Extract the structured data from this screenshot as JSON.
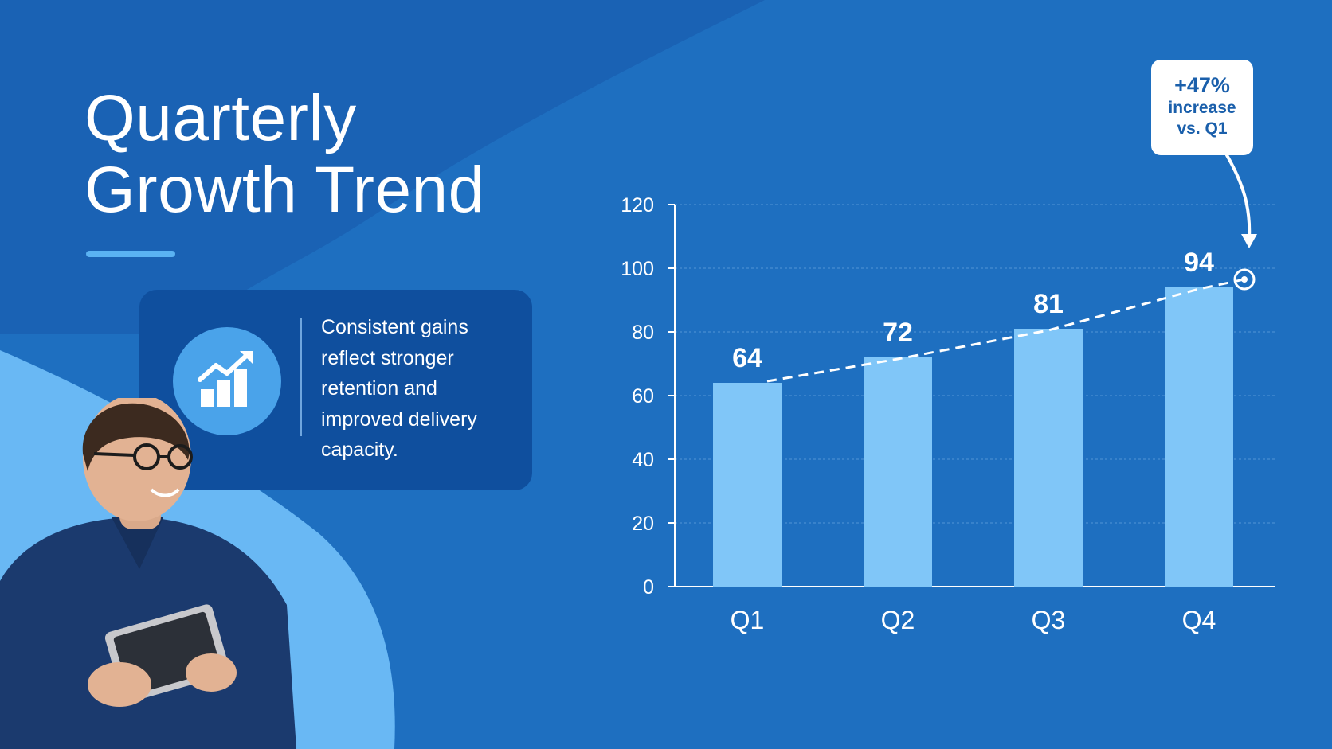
{
  "title": {
    "line1": "Quarterly",
    "line2": "Growth Trend"
  },
  "card": {
    "text": "Consistent gains reflect stronger retention and improved delivery capacity."
  },
  "callout": {
    "value": "+47%",
    "text_line1": "increase",
    "text_line2": "vs. Q1"
  },
  "colors": {
    "background": "#1e6fc0",
    "bar": "#80c6f8",
    "card": "#0f4f9e",
    "accent": "#5ab2f2",
    "callout_text": "#1a5fab"
  },
  "chart_data": {
    "type": "bar",
    "categories": [
      "Q1",
      "Q2",
      "Q3",
      "Q4"
    ],
    "values": [
      64,
      72,
      81,
      94
    ],
    "data_labels": [
      "64",
      "72",
      "81",
      "94"
    ],
    "ylim": [
      0,
      120
    ],
    "yticks": [
      0,
      20,
      40,
      60,
      80,
      100,
      120
    ],
    "grid": true,
    "trendline": "dashed",
    "title": "",
    "xlabel": "",
    "ylabel": ""
  }
}
